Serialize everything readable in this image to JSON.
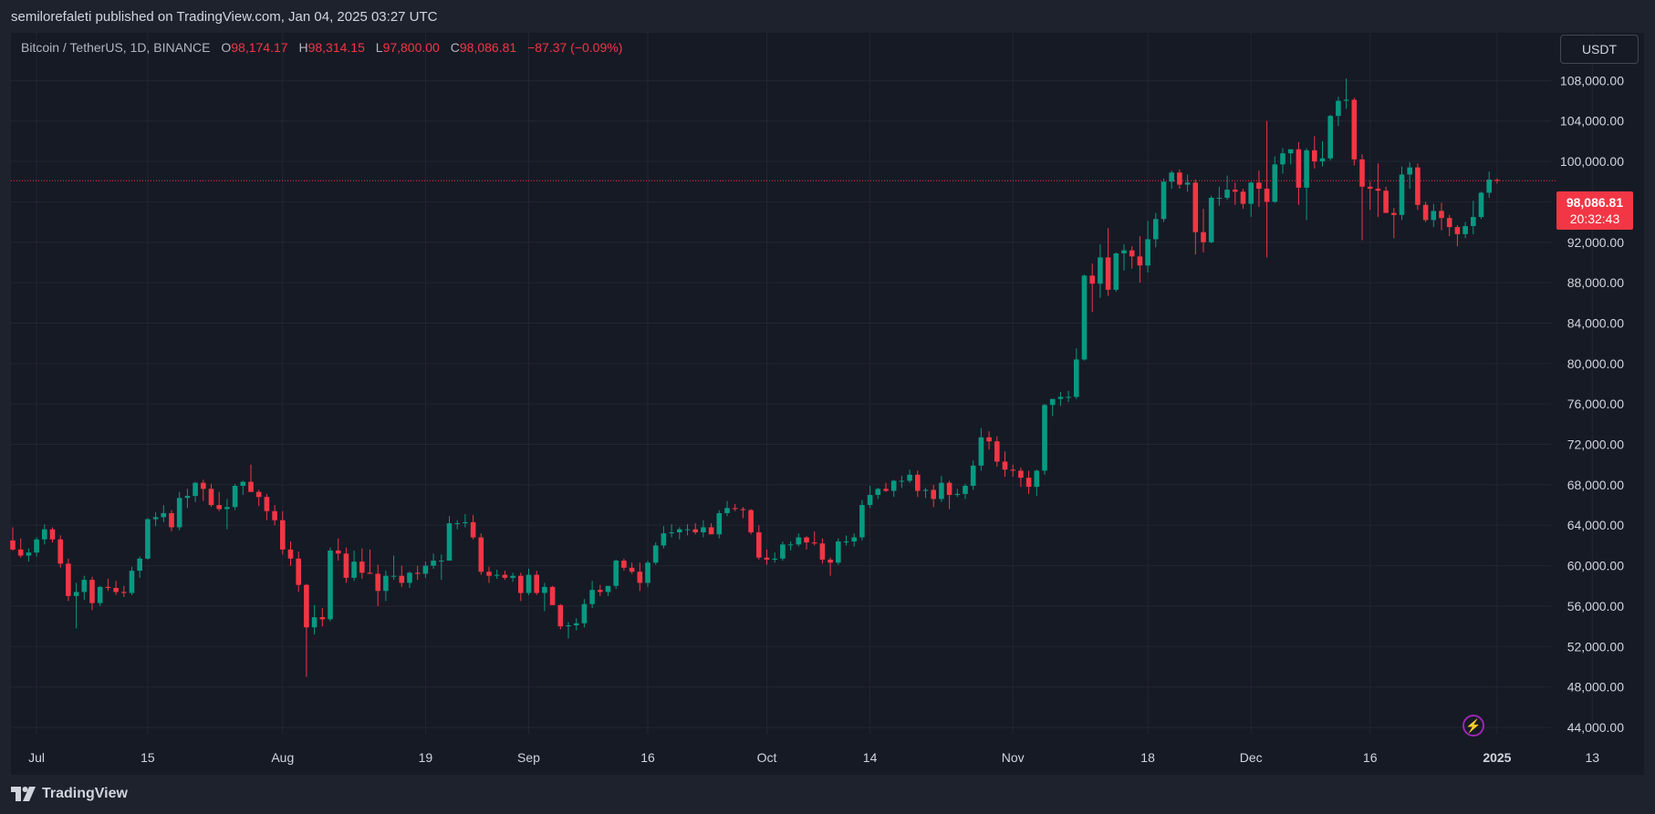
{
  "header": {
    "published": "semilorefaleti published on TradingView.com, Jan 04, 2025 03:27 UTC"
  },
  "legend": {
    "symbol": "Bitcoin / TetherUS, 1D, BINANCE",
    "open_label": "O",
    "open": "98,174.17",
    "high_label": "H",
    "high": "98,314.15",
    "low_label": "L",
    "low": "97,800.00",
    "close_label": "C",
    "close": "98,086.81",
    "change": "−87.37 (−0.09%)"
  },
  "currency": "USDT",
  "price_tag": {
    "price": "98,086.81",
    "countdown": "20:32:43"
  },
  "footer": {
    "brand": "TradingView",
    "logo_icon": "tradingview-logo-icon"
  },
  "colors": {
    "up": "#089981",
    "down": "#f23645",
    "background": "#161a25",
    "grid": "#242833"
  },
  "chart_data": {
    "type": "candlestick",
    "interval": "1D",
    "ylim": [
      44000,
      112000
    ],
    "y_ticks": [
      "44,000.00",
      "48,000.00",
      "52,000.00",
      "56,000.00",
      "60,000.00",
      "64,000.00",
      "68,000.00",
      "72,000.00",
      "76,000.00",
      "80,000.00",
      "84,000.00",
      "88,000.00",
      "92,000.00",
      "96,000.00",
      "100,000.00",
      "104,000.00",
      "108,000.00"
    ],
    "y_tick_values": [
      44000,
      48000,
      52000,
      56000,
      60000,
      64000,
      68000,
      72000,
      76000,
      80000,
      84000,
      88000,
      92000,
      96000,
      100000,
      104000,
      108000
    ],
    "x_ticks": [
      {
        "label": "Jul",
        "index": 3,
        "bold": false
      },
      {
        "label": "15",
        "index": 17,
        "bold": false
      },
      {
        "label": "Aug",
        "index": 34,
        "bold": false
      },
      {
        "label": "19",
        "index": 52,
        "bold": false
      },
      {
        "label": "Sep",
        "index": 65,
        "bold": false
      },
      {
        "label": "16",
        "index": 80,
        "bold": false
      },
      {
        "label": "Oct",
        "index": 95,
        "bold": false
      },
      {
        "label": "14",
        "index": 108,
        "bold": false
      },
      {
        "label": "Nov",
        "index": 126,
        "bold": false
      },
      {
        "label": "18",
        "index": 143,
        "bold": false
      },
      {
        "label": "Dec",
        "index": 156,
        "bold": false
      },
      {
        "label": "16",
        "index": 171,
        "bold": false
      },
      {
        "label": "2025",
        "index": 187,
        "bold": true
      },
      {
        "label": "13",
        "index": 199,
        "bold": false
      }
    ],
    "last_price": 98086.81,
    "ohlc": [
      [
        62500,
        63800,
        61500,
        61600
      ],
      [
        61600,
        62700,
        60800,
        61000
      ],
      [
        61000,
        61700,
        60400,
        61300
      ],
      [
        61300,
        62800,
        60900,
        62600
      ],
      [
        62600,
        64100,
        62100,
        63600
      ],
      [
        63600,
        63800,
        62300,
        62600
      ],
      [
        62600,
        63000,
        59800,
        60200
      ],
      [
        60200,
        60700,
        56500,
        57000
      ],
      [
        57000,
        58300,
        53800,
        57400
      ],
      [
        57400,
        59000,
        56600,
        58600
      ],
      [
        58600,
        58900,
        55600,
        56300
      ],
      [
        56300,
        58000,
        56000,
        57900
      ],
      [
        57900,
        58700,
        57500,
        57800
      ],
      [
        57800,
        58500,
        57100,
        57400
      ],
      [
        57400,
        58000,
        56900,
        57300
      ],
      [
        57300,
        59900,
        57100,
        59500
      ],
      [
        59500,
        60900,
        58800,
        60700
      ],
      [
        60700,
        64700,
        60600,
        64600
      ],
      [
        64600,
        65300,
        63900,
        64800
      ],
      [
        64800,
        66000,
        64300,
        65200
      ],
      [
        65200,
        65500,
        63400,
        63800
      ],
      [
        63800,
        67300,
        63500,
        66700
      ],
      [
        66700,
        67600,
        65700,
        66900
      ],
      [
        66900,
        68300,
        66300,
        68200
      ],
      [
        68200,
        68500,
        66400,
        67600
      ],
      [
        67600,
        68100,
        65800,
        66000
      ],
      [
        66000,
        67300,
        65400,
        65600
      ],
      [
        65600,
        66600,
        63600,
        65800
      ],
      [
        65800,
        68100,
        65500,
        67900
      ],
      [
        67900,
        68400,
        67000,
        68300
      ],
      [
        68300,
        70000,
        67300,
        67300
      ],
      [
        67300,
        67500,
        65900,
        66800
      ],
      [
        66800,
        67100,
        64500,
        65400
      ],
      [
        65400,
        66000,
        64000,
        64500
      ],
      [
        64500,
        65400,
        61100,
        61600
      ],
      [
        61600,
        62400,
        60000,
        60700
      ],
      [
        60700,
        61400,
        57400,
        58100
      ],
      [
        58100,
        58200,
        49000,
        53900
      ],
      [
        53900,
        56100,
        53200,
        54900
      ],
      [
        54900,
        55800,
        54000,
        54700
      ],
      [
        54700,
        61800,
        54500,
        61500
      ],
      [
        61500,
        62700,
        60500,
        61200
      ],
      [
        61200,
        61800,
        58300,
        58800
      ],
      [
        58800,
        61500,
        58500,
        60400
      ],
      [
        60400,
        61700,
        58700,
        59300
      ],
      [
        59300,
        61600,
        59200,
        59200
      ],
      [
        59200,
        60100,
        56000,
        57500
      ],
      [
        57500,
        59500,
        56500,
        59000
      ],
      [
        59000,
        61000,
        58600,
        59000
      ],
      [
        59000,
        60000,
        57900,
        58300
      ],
      [
        58300,
        59400,
        57800,
        59300
      ],
      [
        59300,
        60000,
        58600,
        59200
      ],
      [
        59200,
        60400,
        58800,
        60000
      ],
      [
        60000,
        61200,
        59700,
        60500
      ],
      [
        60500,
        61100,
        58600,
        60500
      ],
      [
        60500,
        64900,
        60500,
        64200
      ],
      [
        64200,
        64500,
        63600,
        64200
      ],
      [
        64200,
        65100,
        63800,
        64300
      ],
      [
        64300,
        65000,
        62600,
        62800
      ],
      [
        62800,
        63200,
        59100,
        59400
      ],
      [
        59400,
        59900,
        58300,
        59000
      ],
      [
        59000,
        59600,
        58700,
        59100
      ],
      [
        59100,
        59500,
        58600,
        58800
      ],
      [
        58800,
        59300,
        58400,
        59000
      ],
      [
        59000,
        59300,
        56500,
        57300
      ],
      [
        57300,
        59700,
        57100,
        59100
      ],
      [
        59100,
        59500,
        57100,
        57300
      ],
      [
        57300,
        58300,
        55500,
        57900
      ],
      [
        57900,
        58000,
        56300,
        56100
      ],
      [
        56100,
        56200,
        53700,
        54000
      ],
      [
        54000,
        54400,
        52800,
        54100
      ],
      [
        54100,
        54800,
        53600,
        54300
      ],
      [
        54300,
        56700,
        53900,
        56200
      ],
      [
        56200,
        58500,
        55800,
        57600
      ],
      [
        57600,
        58100,
        57000,
        57400
      ],
      [
        57400,
        58000,
        57000,
        58000
      ],
      [
        58000,
        60600,
        57700,
        60500
      ],
      [
        60500,
        60700,
        59500,
        59800
      ],
      [
        59800,
        60300,
        59200,
        59400
      ],
      [
        59400,
        60300,
        57500,
        58300
      ],
      [
        58300,
        60500,
        57900,
        60300
      ],
      [
        60300,
        62300,
        60100,
        62000
      ],
      [
        62000,
        63900,
        61700,
        63200
      ],
      [
        63200,
        64100,
        62800,
        63300
      ],
      [
        63300,
        63800,
        62600,
        63600
      ],
      [
        63600,
        64100,
        63000,
        63600
      ],
      [
        63600,
        64200,
        63100,
        63300
      ],
      [
        63300,
        64500,
        62800,
        63800
      ],
      [
        63800,
        64200,
        63200,
        63100
      ],
      [
        63100,
        65500,
        62700,
        65200
      ],
      [
        65200,
        66400,
        64900,
        65700
      ],
      [
        65700,
        66100,
        65400,
        65600
      ],
      [
        65600,
        65800,
        64700,
        65500
      ],
      [
        65500,
        65600,
        63100,
        63300
      ],
      [
        63300,
        64000,
        60600,
        60800
      ],
      [
        60800,
        61600,
        60100,
        60600
      ],
      [
        60600,
        61300,
        60300,
        60700
      ],
      [
        60700,
        62400,
        60500,
        62100
      ],
      [
        62100,
        62400,
        61500,
        62100
      ],
      [
        62100,
        63200,
        61900,
        62800
      ],
      [
        62800,
        62900,
        61600,
        62300
      ],
      [
        62300,
        63400,
        62000,
        62200
      ],
      [
        62200,
        62700,
        60200,
        60600
      ],
      [
        60600,
        60800,
        59000,
        60300
      ],
      [
        60300,
        62700,
        60100,
        62400
      ],
      [
        62400,
        63000,
        62000,
        62400
      ],
      [
        62400,
        63200,
        61900,
        62800
      ],
      [
        62800,
        66500,
        62500,
        66000
      ],
      [
        66000,
        67900,
        65700,
        67000
      ],
      [
        67000,
        67700,
        66600,
        67600
      ],
      [
        67600,
        68200,
        67300,
        67400
      ],
      [
        67400,
        68500,
        66800,
        68400
      ],
      [
        68400,
        68900,
        67700,
        68400
      ],
      [
        68400,
        69500,
        68200,
        69000
      ],
      [
        69000,
        69400,
        66800,
        67400
      ],
      [
        67400,
        67700,
        66700,
        67500
      ],
      [
        67500,
        68000,
        65800,
        66600
      ],
      [
        66600,
        68900,
        66300,
        68200
      ],
      [
        68200,
        68400,
        65600,
        67000
      ],
      [
        67000,
        67600,
        66800,
        67100
      ],
      [
        67100,
        68100,
        66600,
        67900
      ],
      [
        67900,
        70400,
        67500,
        69900
      ],
      [
        69900,
        73600,
        69400,
        72700
      ],
      [
        72700,
        73300,
        71500,
        72300
      ],
      [
        72300,
        72800,
        69800,
        70300
      ],
      [
        70300,
        71300,
        68800,
        69500
      ],
      [
        69500,
        70000,
        68800,
        69400
      ],
      [
        69400,
        69700,
        67800,
        68700
      ],
      [
        68700,
        69400,
        67100,
        67800
      ],
      [
        67800,
        69500,
        66900,
        69400
      ],
      [
        69400,
        76000,
        69000,
        75900
      ],
      [
        75900,
        76500,
        74800,
        76500
      ],
      [
        76500,
        77200,
        75800,
        76700
      ],
      [
        76700,
        77300,
        76200,
        76700
      ],
      [
        76700,
        81500,
        76500,
        80400
      ],
      [
        80400,
        88800,
        80300,
        88700
      ],
      [
        88700,
        89900,
        85100,
        87900
      ],
      [
        87900,
        91800,
        86500,
        90500
      ],
      [
        90500,
        93400,
        86700,
        87300
      ],
      [
        87300,
        91000,
        87100,
        90900
      ],
      [
        90900,
        91800,
        89200,
        91200
      ],
      [
        91200,
        91600,
        89400,
        90600
      ],
      [
        90600,
        92600,
        88000,
        89700
      ],
      [
        89700,
        94100,
        89000,
        92300
      ],
      [
        92300,
        94900,
        91500,
        94300
      ],
      [
        94300,
        98300,
        94000,
        98000
      ],
      [
        98000,
        99100,
        97300,
        98900
      ],
      [
        98900,
        99200,
        97300,
        97700
      ],
      [
        97700,
        98700,
        97000,
        97900
      ],
      [
        97900,
        98200,
        90800,
        93000
      ],
      [
        93000,
        95300,
        91000,
        92000
      ],
      [
        92000,
        96600,
        91900,
        96400
      ],
      [
        96400,
        97500,
        95600,
        96400
      ],
      [
        96400,
        98600,
        96200,
        97200
      ],
      [
        97200,
        97900,
        95700,
        97000
      ],
      [
        97000,
        97300,
        95300,
        95800
      ],
      [
        95800,
        98000,
        94500,
        97900
      ],
      [
        97900,
        99100,
        95500,
        97300
      ],
      [
        97300,
        104000,
        90500,
        96000
      ],
      [
        96000,
        100500,
        95900,
        99700
      ],
      [
        99700,
        101300,
        98800,
        100800
      ],
      [
        100800,
        101100,
        99700,
        101200
      ],
      [
        101200,
        101900,
        95700,
        97400
      ],
      [
        97400,
        101300,
        94200,
        101100
      ],
      [
        101100,
        102500,
        99300,
        100000
      ],
      [
        100000,
        102000,
        99500,
        100300
      ],
      [
        100300,
        104600,
        100100,
        104500
      ],
      [
        104500,
        106400,
        103500,
        106000
      ],
      [
        106000,
        108200,
        105200,
        106100
      ],
      [
        106100,
        106300,
        99600,
        100200
      ],
      [
        100200,
        100700,
        92200,
        97500
      ],
      [
        97500,
        98000,
        95200,
        97300
      ],
      [
        97300,
        99800,
        94500,
        97100
      ],
      [
        97100,
        97500,
        95100,
        94900
      ],
      [
        94900,
        95400,
        92400,
        94700
      ],
      [
        94700,
        99500,
        94200,
        98700
      ],
      [
        98700,
        99900,
        97300,
        99400
      ],
      [
        99400,
        99800,
        95200,
        95700
      ],
      [
        95700,
        96000,
        94000,
        94200
      ],
      [
        94200,
        95800,
        93500,
        95100
      ],
      [
        95100,
        95900,
        93200,
        94400
      ],
      [
        94400,
        94700,
        92600,
        93500
      ],
      [
        93500,
        93700,
        91600,
        92800
      ],
      [
        92800,
        94000,
        92400,
        93600
      ],
      [
        93600,
        96100,
        92800,
        94500
      ],
      [
        94500,
        97000,
        94300,
        96900
      ],
      [
        96900,
        99000,
        96400,
        98200
      ],
      [
        98174,
        98314,
        97800,
        98086
      ]
    ]
  }
}
